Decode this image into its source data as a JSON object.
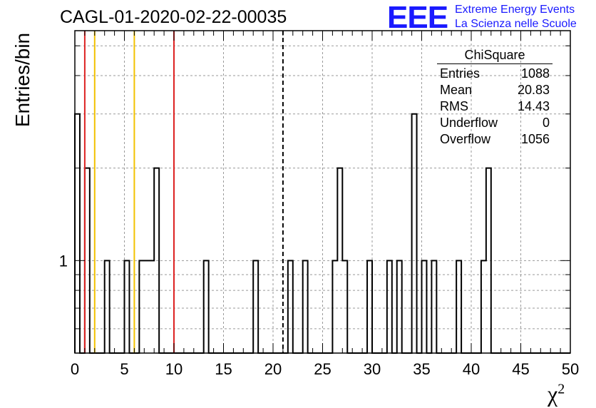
{
  "title": "CAGL-01-2020-02-22-00035",
  "logo": {
    "mark": "EEE",
    "line1": "Extreme Energy Events",
    "line2": "La Scienza nelle Scuole"
  },
  "stats": {
    "header": "ChiSquare",
    "rows": [
      {
        "label": "Entries",
        "value": "1088"
      },
      {
        "label": "Mean",
        "value": "20.83"
      },
      {
        "label": "RMS",
        "value": "14.43"
      },
      {
        "label": "Underflow",
        "value": "0"
      },
      {
        "label": "Overflow",
        "value": "1056"
      }
    ]
  },
  "chart_data": {
    "type": "bar",
    "title": "CAGL-01-2020-02-22-00035",
    "xlabel": "χ²",
    "ylabel": "Entries/bin",
    "xlim": [
      0,
      50
    ],
    "ylim": [
      0.5,
      5.6
    ],
    "y_scale": "log",
    "grid": true,
    "x_ticks": [
      0,
      5,
      10,
      15,
      20,
      25,
      30,
      35,
      40,
      45,
      50
    ],
    "x_tick_labels": [
      "0",
      "5",
      "10",
      "15",
      "20",
      "25",
      "30",
      "35",
      "40",
      "45",
      "50"
    ],
    "y_tick_labels": [
      "1"
    ],
    "bin_width": 0.5,
    "bins": [
      {
        "x": 0.0,
        "value": 3
      },
      {
        "x": 1.0,
        "value": 2
      },
      {
        "x": 3.0,
        "value": 1
      },
      {
        "x": 5.0,
        "value": 1
      },
      {
        "x": 6.5,
        "value": 1
      },
      {
        "x": 7.0,
        "value": 1
      },
      {
        "x": 7.5,
        "value": 1
      },
      {
        "x": 8.0,
        "value": 2
      },
      {
        "x": 13.0,
        "value": 1
      },
      {
        "x": 18.0,
        "value": 1
      },
      {
        "x": 21.5,
        "value": 1
      },
      {
        "x": 23.0,
        "value": 1
      },
      {
        "x": 26.0,
        "value": 1
      },
      {
        "x": 26.5,
        "value": 2
      },
      {
        "x": 27.0,
        "value": 1
      },
      {
        "x": 29.5,
        "value": 1
      },
      {
        "x": 31.5,
        "value": 1
      },
      {
        "x": 32.5,
        "value": 1
      },
      {
        "x": 34.0,
        "value": 3
      },
      {
        "x": 35.0,
        "value": 1
      },
      {
        "x": 36.0,
        "value": 1
      },
      {
        "x": 38.5,
        "value": 1
      },
      {
        "x": 41.0,
        "value": 1
      },
      {
        "x": 41.5,
        "value": 2
      }
    ],
    "vertical_lines": [
      {
        "x": 1.0,
        "color": "#dd2222",
        "style": "solid"
      },
      {
        "x": 2.0,
        "color": "#f2c200",
        "style": "solid"
      },
      {
        "x": 6.0,
        "color": "#f2c200",
        "style": "solid"
      },
      {
        "x": 10.0,
        "color": "#dd2222",
        "style": "solid"
      },
      {
        "x": 21.0,
        "color": "#000000",
        "style": "dashed"
      }
    ]
  }
}
